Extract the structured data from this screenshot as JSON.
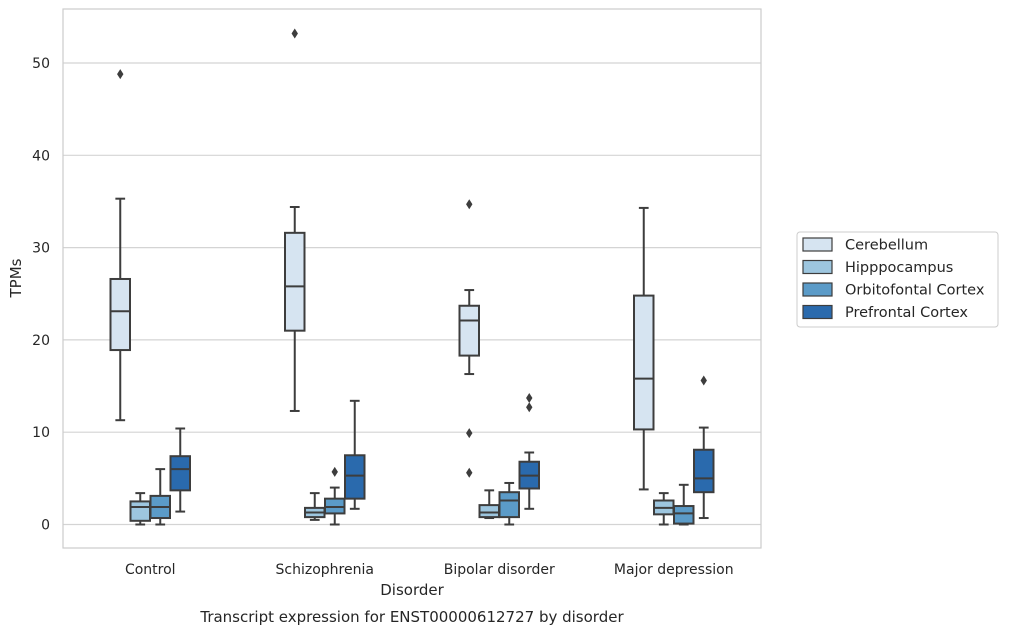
{
  "chart_data": {
    "type": "box",
    "caption": "Transcript expression for ENST00000612727 by disorder",
    "xlabel": "Disorder",
    "ylabel": "TPMs",
    "ylim": [
      -2.5,
      55.5
    ],
    "yticks": [
      0,
      10,
      20,
      30,
      40,
      50
    ],
    "grid": "horizontal",
    "legend_position": "right",
    "categories": [
      "Control",
      "Schizophrenia",
      "Bipolar disorder",
      "Major depression"
    ],
    "series": [
      {
        "name": "Cerebellum",
        "color": "#d6e4f1",
        "boxes": [
          {
            "whisker_low": 11.3,
            "q1": 18.9,
            "median": 23.1,
            "q3": 26.6,
            "whisker_high": 35.3,
            "outliers": [
              48.8
            ]
          },
          {
            "whisker_low": 12.3,
            "q1": 21.0,
            "median": 25.8,
            "q3": 31.6,
            "whisker_high": 34.4,
            "outliers": [
              53.2
            ]
          },
          {
            "whisker_low": 16.3,
            "q1": 18.3,
            "median": 22.1,
            "q3": 23.7,
            "whisker_high": 25.4,
            "outliers": [
              34.7,
              9.9,
              5.6
            ]
          },
          {
            "whisker_low": 3.8,
            "q1": 10.3,
            "median": 15.8,
            "q3": 24.8,
            "whisker_high": 34.3,
            "outliers": []
          }
        ]
      },
      {
        "name": "Hipppocampus",
        "color": "#9dc6df",
        "boxes": [
          {
            "whisker_low": 0.0,
            "q1": 0.4,
            "median": 1.9,
            "q3": 2.5,
            "whisker_high": 3.4,
            "outliers": []
          },
          {
            "whisker_low": 0.5,
            "q1": 0.8,
            "median": 1.3,
            "q3": 1.8,
            "whisker_high": 3.4,
            "outliers": []
          },
          {
            "whisker_low": 0.7,
            "q1": 0.8,
            "median": 1.3,
            "q3": 2.1,
            "whisker_high": 3.7,
            "outliers": []
          },
          {
            "whisker_low": 0.0,
            "q1": 1.1,
            "median": 1.8,
            "q3": 2.6,
            "whisker_high": 3.4,
            "outliers": []
          }
        ]
      },
      {
        "name": "Orbitofontal Cortex",
        "color": "#5b9bc8",
        "boxes": [
          {
            "whisker_low": 0.0,
            "q1": 0.7,
            "median": 1.9,
            "q3": 3.1,
            "whisker_high": 6.0,
            "outliers": []
          },
          {
            "whisker_low": 0.0,
            "q1": 1.2,
            "median": 1.9,
            "q3": 2.8,
            "whisker_high": 4.0,
            "outliers": [
              5.7
            ]
          },
          {
            "whisker_low": 0.0,
            "q1": 0.8,
            "median": 2.6,
            "q3": 3.5,
            "whisker_high": 4.5,
            "outliers": []
          },
          {
            "whisker_low": 0.0,
            "q1": 0.1,
            "median": 1.2,
            "q3": 2.0,
            "whisker_high": 4.3,
            "outliers": []
          }
        ]
      },
      {
        "name": "Prefrontal Cortex",
        "color": "#2a6aad",
        "boxes": [
          {
            "whisker_low": 1.4,
            "q1": 3.7,
            "median": 6.0,
            "q3": 7.4,
            "whisker_high": 10.4,
            "outliers": []
          },
          {
            "whisker_low": 1.7,
            "q1": 2.8,
            "median": 5.3,
            "q3": 7.5,
            "whisker_high": 13.4,
            "outliers": []
          },
          {
            "whisker_low": 1.7,
            "q1": 3.9,
            "median": 5.3,
            "q3": 6.8,
            "whisker_high": 7.8,
            "outliers": [
              13.7,
              12.7
            ]
          },
          {
            "whisker_low": 0.7,
            "q1": 3.5,
            "median": 5.0,
            "q3": 8.1,
            "whisker_high": 10.5,
            "outliers": [
              15.6
            ]
          }
        ]
      }
    ]
  }
}
